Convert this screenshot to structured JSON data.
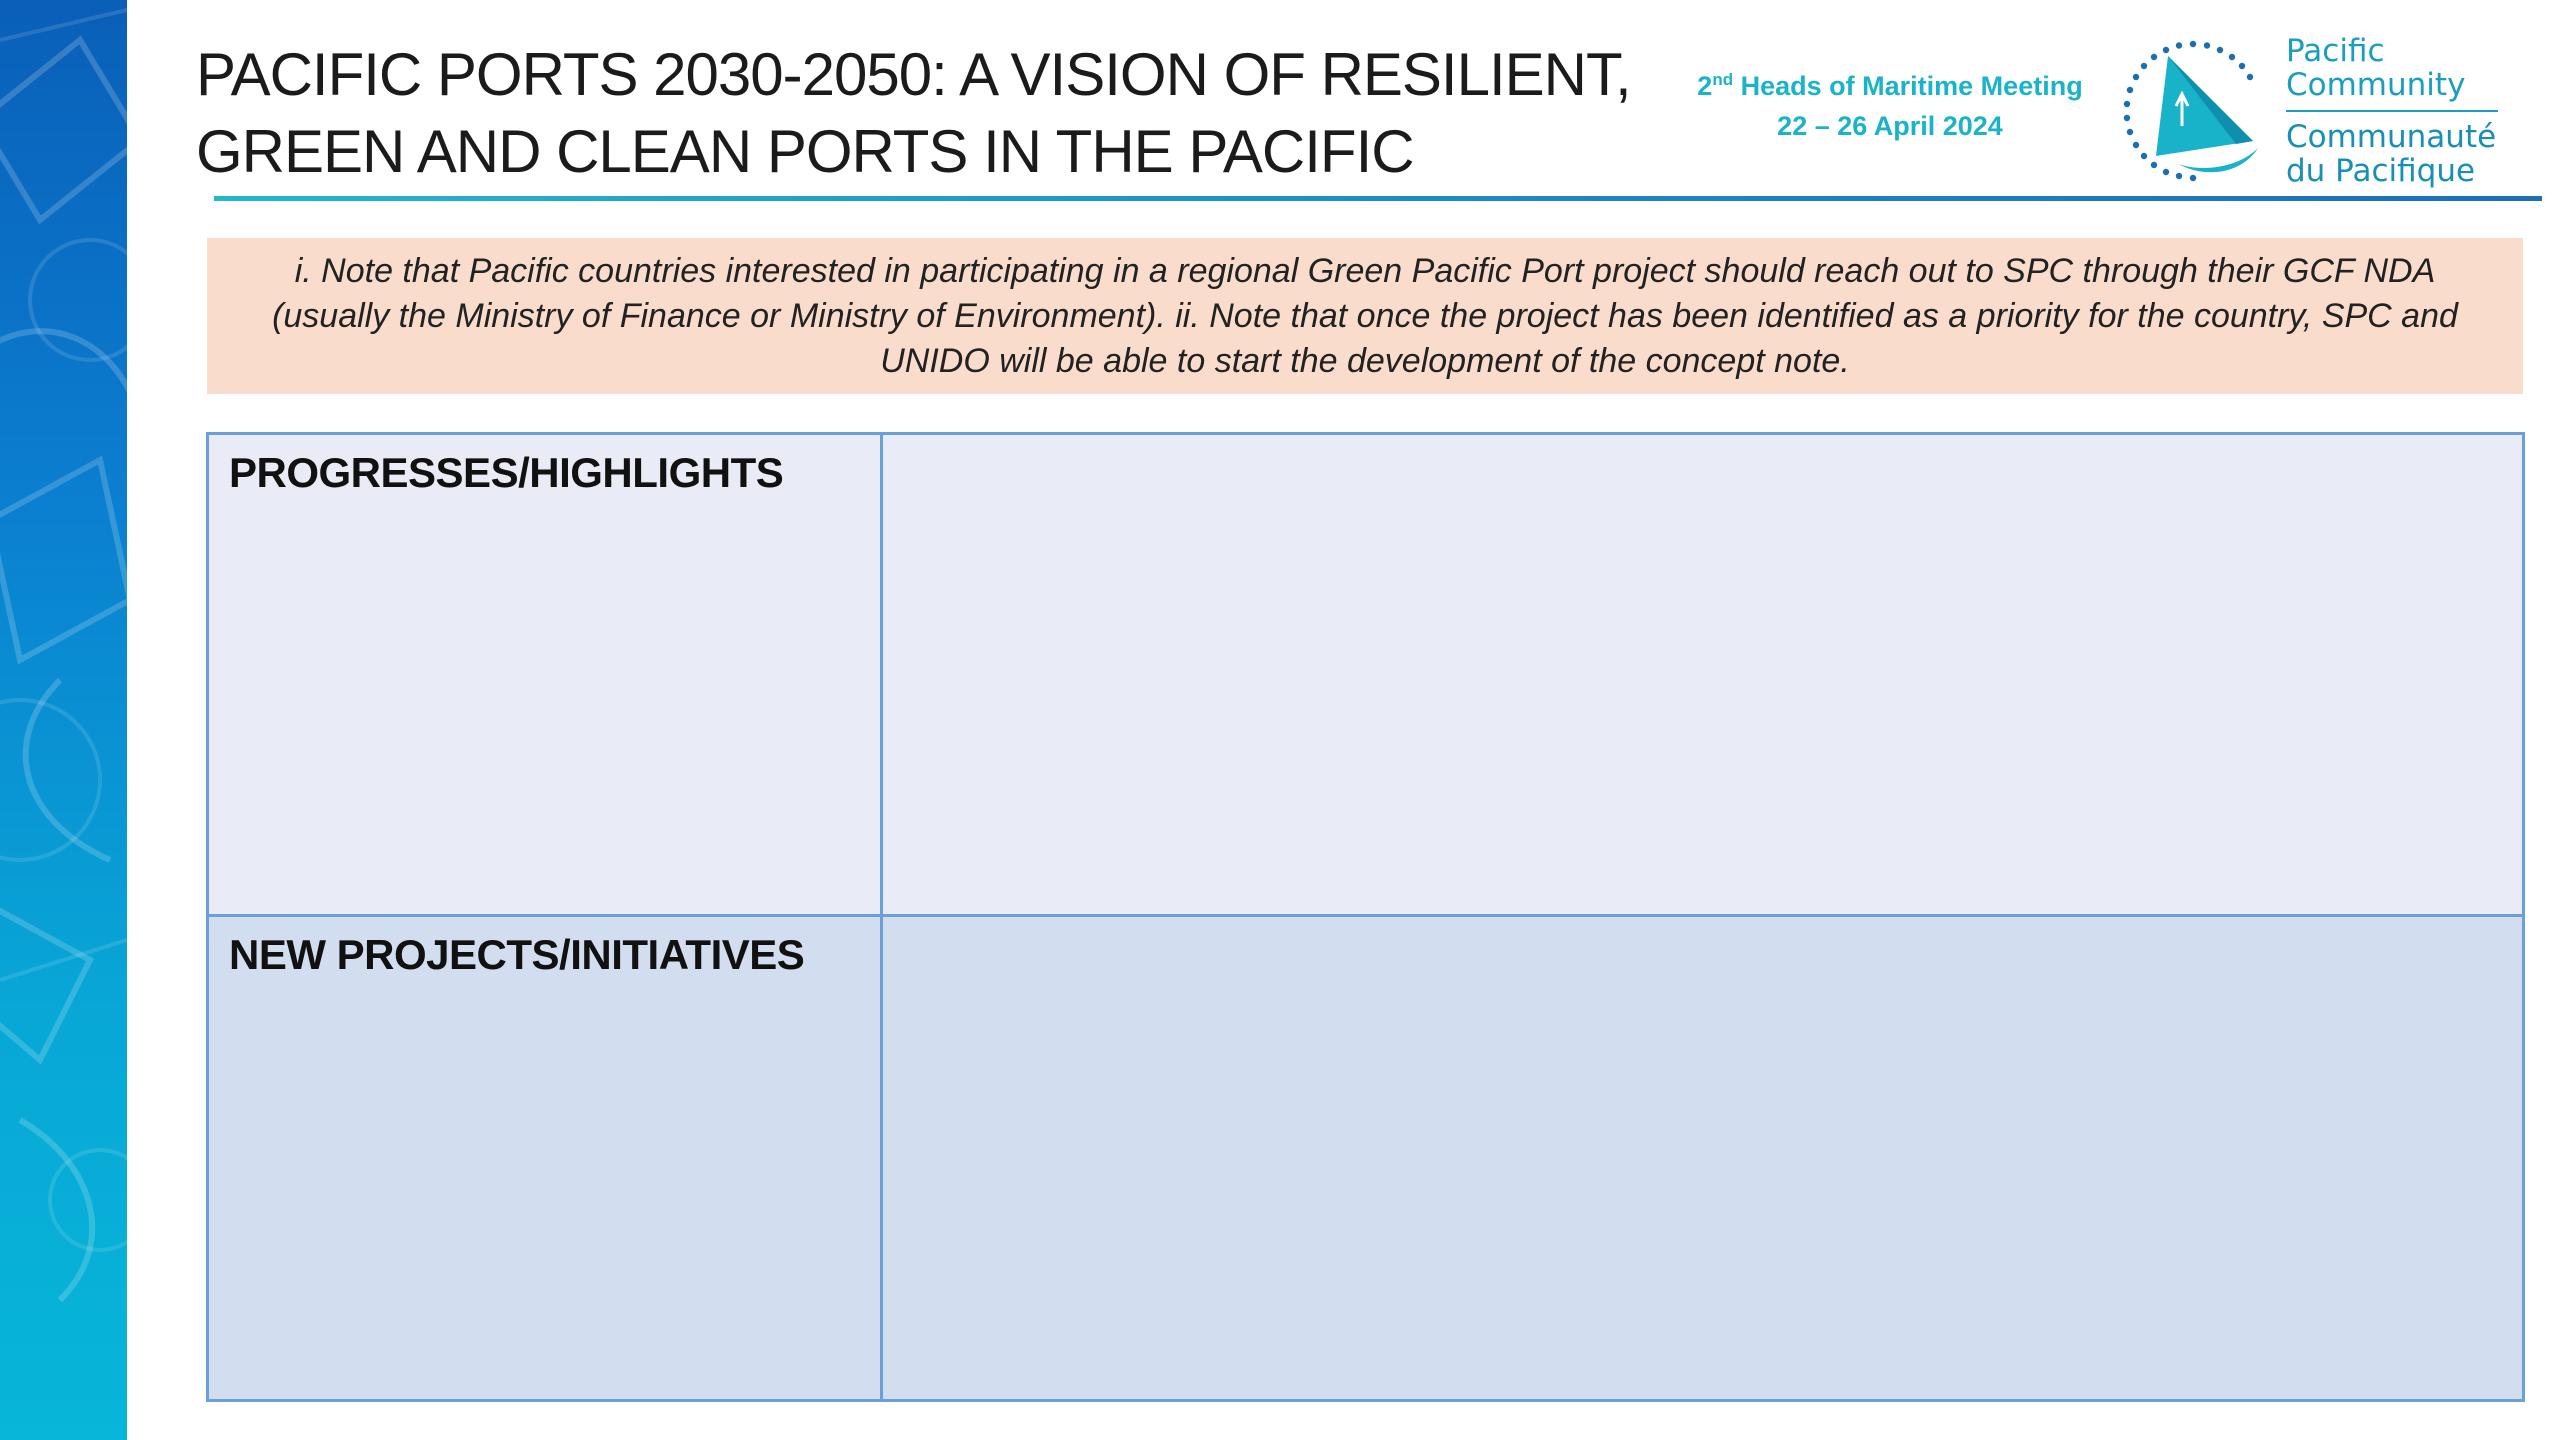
{
  "slide": {
    "title_lines": [
      "PACIFIC PORTS 2030-2050: A VISION OF RESILIENT,",
      "GREEN AND CLEAN PORTS IN THE PACIFIC"
    ],
    "meeting": {
      "ordinal_number": "2",
      "ordinal_suffix": "nd",
      "name": "Heads of Maritime Meeting",
      "dates": "22 – 26 April 2024"
    },
    "logo": {
      "en_line1": "Pacific",
      "en_line2": "Community",
      "fr_line1": "Communauté",
      "fr_line2": "du Pacifique",
      "icon": "pacific-community-sail-logo-icon"
    },
    "note": "i. Note that Pacific countries interested in participating in a regional Green Pacific Port project should reach out to SPC through their GCF NDA (usually the Ministry of Finance or Ministry of Environment). ii. Note that once the project has been identified as a priority for the country, SPC and UNIDO will be able to start the development of the concept note.",
    "table": {
      "rows": [
        {
          "label": "PROGRESSES/HIGHLIGHTS",
          "content": ""
        },
        {
          "label": "NEW PROJECTS/INITIATIVES",
          "content": ""
        }
      ]
    },
    "colors": {
      "accent": "#1ab3c8",
      "band": "#0b7fd0",
      "note_bg": "#f9dccc",
      "table_border": "#6a9fd9",
      "row1_bg": "#e9ebf6",
      "row2_bg": "#d2deef"
    }
  }
}
